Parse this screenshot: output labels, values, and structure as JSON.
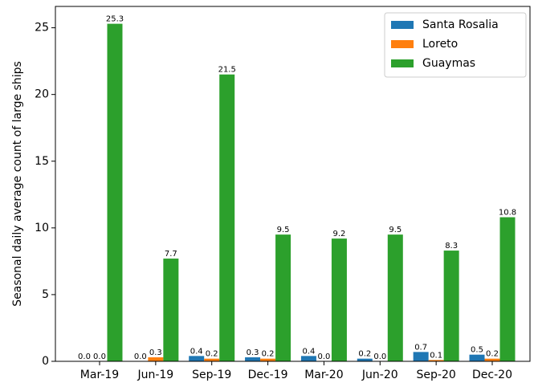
{
  "chart_data": {
    "type": "bar",
    "ylabel": "Seasonal daily average count of large ships",
    "categories": [
      "Mar-19",
      "Jun-19",
      "Sep-19",
      "Dec-19",
      "Mar-20",
      "Jun-20",
      "Sep-20",
      "Dec-20"
    ],
    "series": [
      {
        "name": "Santa Rosalia",
        "color": "#1f77b4",
        "values": [
          0,
          0,
          0.4,
          0.3,
          0.4,
          0.2,
          0.7,
          0.5
        ],
        "value_labels": [
          "0.0",
          "0.0",
          "0.4",
          "0.3",
          "0.4",
          "0.2",
          "0.7",
          "0.5"
        ]
      },
      {
        "name": "Loreto",
        "color": "#ff7f0e",
        "values": [
          0,
          0.3,
          0.2,
          0.2,
          0,
          0,
          0.1,
          0.2
        ],
        "value_labels": [
          "0.0",
          "0.3",
          "0.2",
          "0.2",
          "0.0",
          "0.0",
          "0.1",
          "0.2"
        ]
      },
      {
        "name": "Guaymas",
        "color": "#2ca02c",
        "values": [
          25.3,
          7.7,
          21.5,
          9.5,
          9.2,
          9.5,
          8.3,
          10.8
        ],
        "value_labels": [
          "25.3",
          "7.7",
          "21.5",
          "9.5",
          "9.2",
          "9.5",
          "8.3",
          "10.8"
        ]
      }
    ],
    "ylim": [
      0,
      26.6
    ],
    "yticks": [
      0,
      5,
      10,
      15,
      20,
      25
    ],
    "grid": false,
    "legend": "upper right"
  }
}
